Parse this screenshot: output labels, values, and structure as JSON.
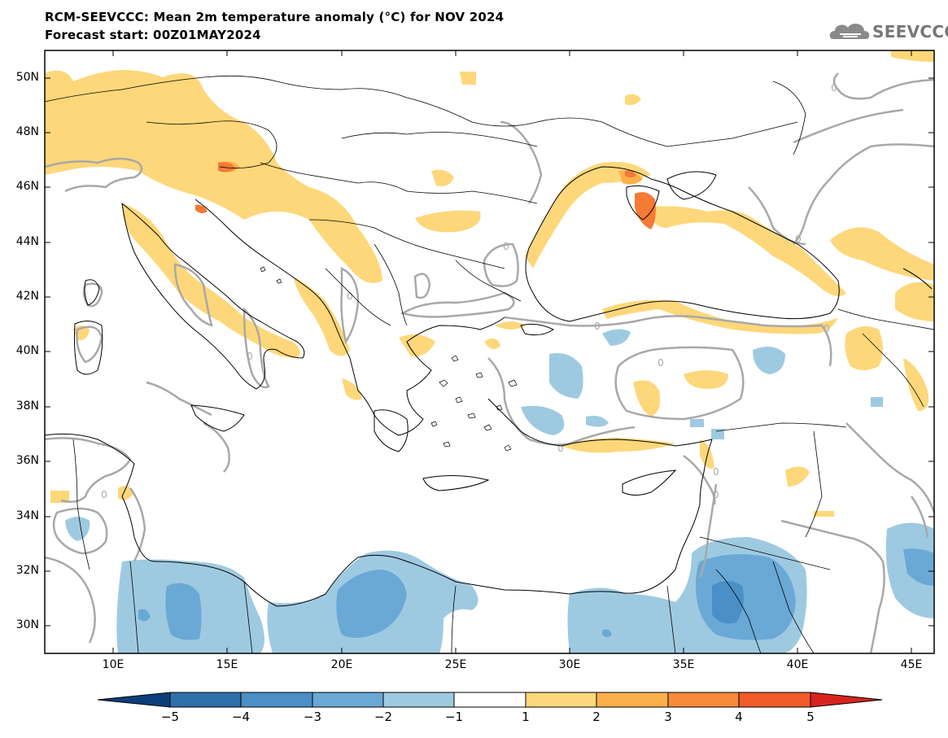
{
  "header": {
    "title_line1": "RCM-SEEVCCC: Mean 2m temperature anomaly (°C) for NOV 2024",
    "title_line2": "Forecast start: 00Z01MAY2024",
    "logo_text": "SEEVCCC"
  },
  "axes": {
    "lat_labels": [
      "50N",
      "48N",
      "46N",
      "44N",
      "42N",
      "40N",
      "38N",
      "36N",
      "34N",
      "32N",
      "30N"
    ],
    "lon_labels": [
      "10E",
      "15E",
      "20E",
      "25E",
      "30E",
      "35E",
      "40E",
      "45E"
    ]
  },
  "contour_label": "0",
  "colorbar": {
    "labels": [
      "−5",
      "−4",
      "−3",
      "−2",
      "−1",
      "1",
      "2",
      "3",
      "4",
      "5"
    ],
    "colors": [
      "#0b3e7a",
      "#2d6faa",
      "#4a8fc6",
      "#6aa8d6",
      "#9ecae1",
      "#ffffff",
      "#fdd77a",
      "#fcb04c",
      "#f88a3a",
      "#f25b2a",
      "#d7251e"
    ]
  },
  "colors": {
    "warm1": "#fdd77a",
    "warm2": "#fcb04c",
    "warm3": "#f47a35",
    "cool1": "#9ecae1",
    "cool2": "#6aa8d6",
    "cool3": "#4a8fc6",
    "zero_contour": "#a8a8a8"
  }
}
